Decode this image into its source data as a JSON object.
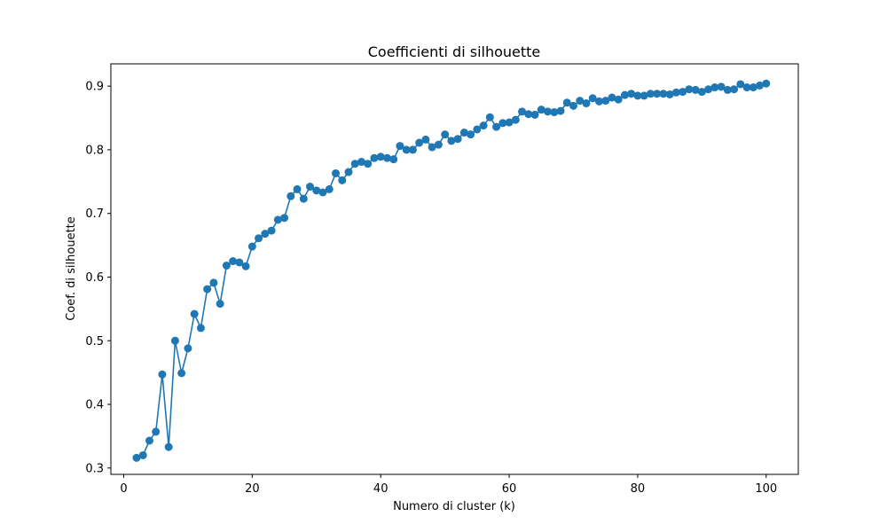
{
  "chart_data": {
    "type": "line",
    "title": "Coefficienti di silhouette",
    "xlabel": "Numero di cluster (k)",
    "ylabel": "Coef. di silhouette",
    "xlim": [
      -2,
      105
    ],
    "ylim": [
      0.29,
      0.935
    ],
    "xticks": [
      0,
      20,
      40,
      60,
      80,
      100
    ],
    "xtick_labels": [
      "0",
      "20",
      "40",
      "60",
      "80",
      "100"
    ],
    "yticks": [
      0.3,
      0.4,
      0.5,
      0.6,
      0.7,
      0.8,
      0.9
    ],
    "ytick_labels": [
      "0.3",
      "0.4",
      "0.5",
      "0.6",
      "0.7",
      "0.8",
      "0.9"
    ],
    "grid": false,
    "markers": true,
    "series": [
      {
        "color": "#1f77b4",
        "x": [
          2,
          3,
          4,
          5,
          6,
          7,
          8,
          9,
          10,
          11,
          12,
          13,
          14,
          15,
          16,
          17,
          18,
          19,
          20,
          21,
          22,
          23,
          24,
          25,
          26,
          27,
          28,
          29,
          30,
          31,
          32,
          33,
          34,
          35,
          36,
          37,
          38,
          39,
          40,
          41,
          42,
          43,
          44,
          45,
          46,
          47,
          48,
          49,
          50,
          51,
          52,
          53,
          54,
          55,
          56,
          57,
          58,
          59,
          60,
          61,
          62,
          63,
          64,
          65,
          66,
          67,
          68,
          69,
          70,
          71,
          72,
          73,
          74,
          75,
          76,
          77,
          78,
          79,
          80,
          81,
          82,
          83,
          84,
          85,
          86,
          87,
          88,
          89,
          90,
          91,
          92,
          93,
          94,
          95,
          96,
          97,
          98,
          99,
          100
        ],
        "y": [
          0.316,
          0.32,
          0.343,
          0.357,
          0.447,
          0.333,
          0.5,
          0.449,
          0.488,
          0.542,
          0.52,
          0.581,
          0.591,
          0.558,
          0.618,
          0.625,
          0.623,
          0.617,
          0.648,
          0.661,
          0.668,
          0.673,
          0.69,
          0.693,
          0.727,
          0.738,
          0.723,
          0.742,
          0.736,
          0.733,
          0.738,
          0.763,
          0.752,
          0.765,
          0.778,
          0.781,
          0.778,
          0.787,
          0.789,
          0.787,
          0.785,
          0.806,
          0.8,
          0.8,
          0.811,
          0.816,
          0.804,
          0.808,
          0.824,
          0.814,
          0.817,
          0.827,
          0.824,
          0.832,
          0.838,
          0.851,
          0.836,
          0.842,
          0.843,
          0.847,
          0.86,
          0.856,
          0.855,
          0.863,
          0.86,
          0.859,
          0.861,
          0.874,
          0.869,
          0.877,
          0.873,
          0.881,
          0.876,
          0.877,
          0.882,
          0.879,
          0.886,
          0.888,
          0.885,
          0.885,
          0.888,
          0.888,
          0.888,
          0.887,
          0.89,
          0.891,
          0.895,
          0.894,
          0.891,
          0.895,
          0.898,
          0.899,
          0.894,
          0.895,
          0.903,
          0.898,
          0.898,
          0.901,
          0.904
        ]
      }
    ]
  }
}
